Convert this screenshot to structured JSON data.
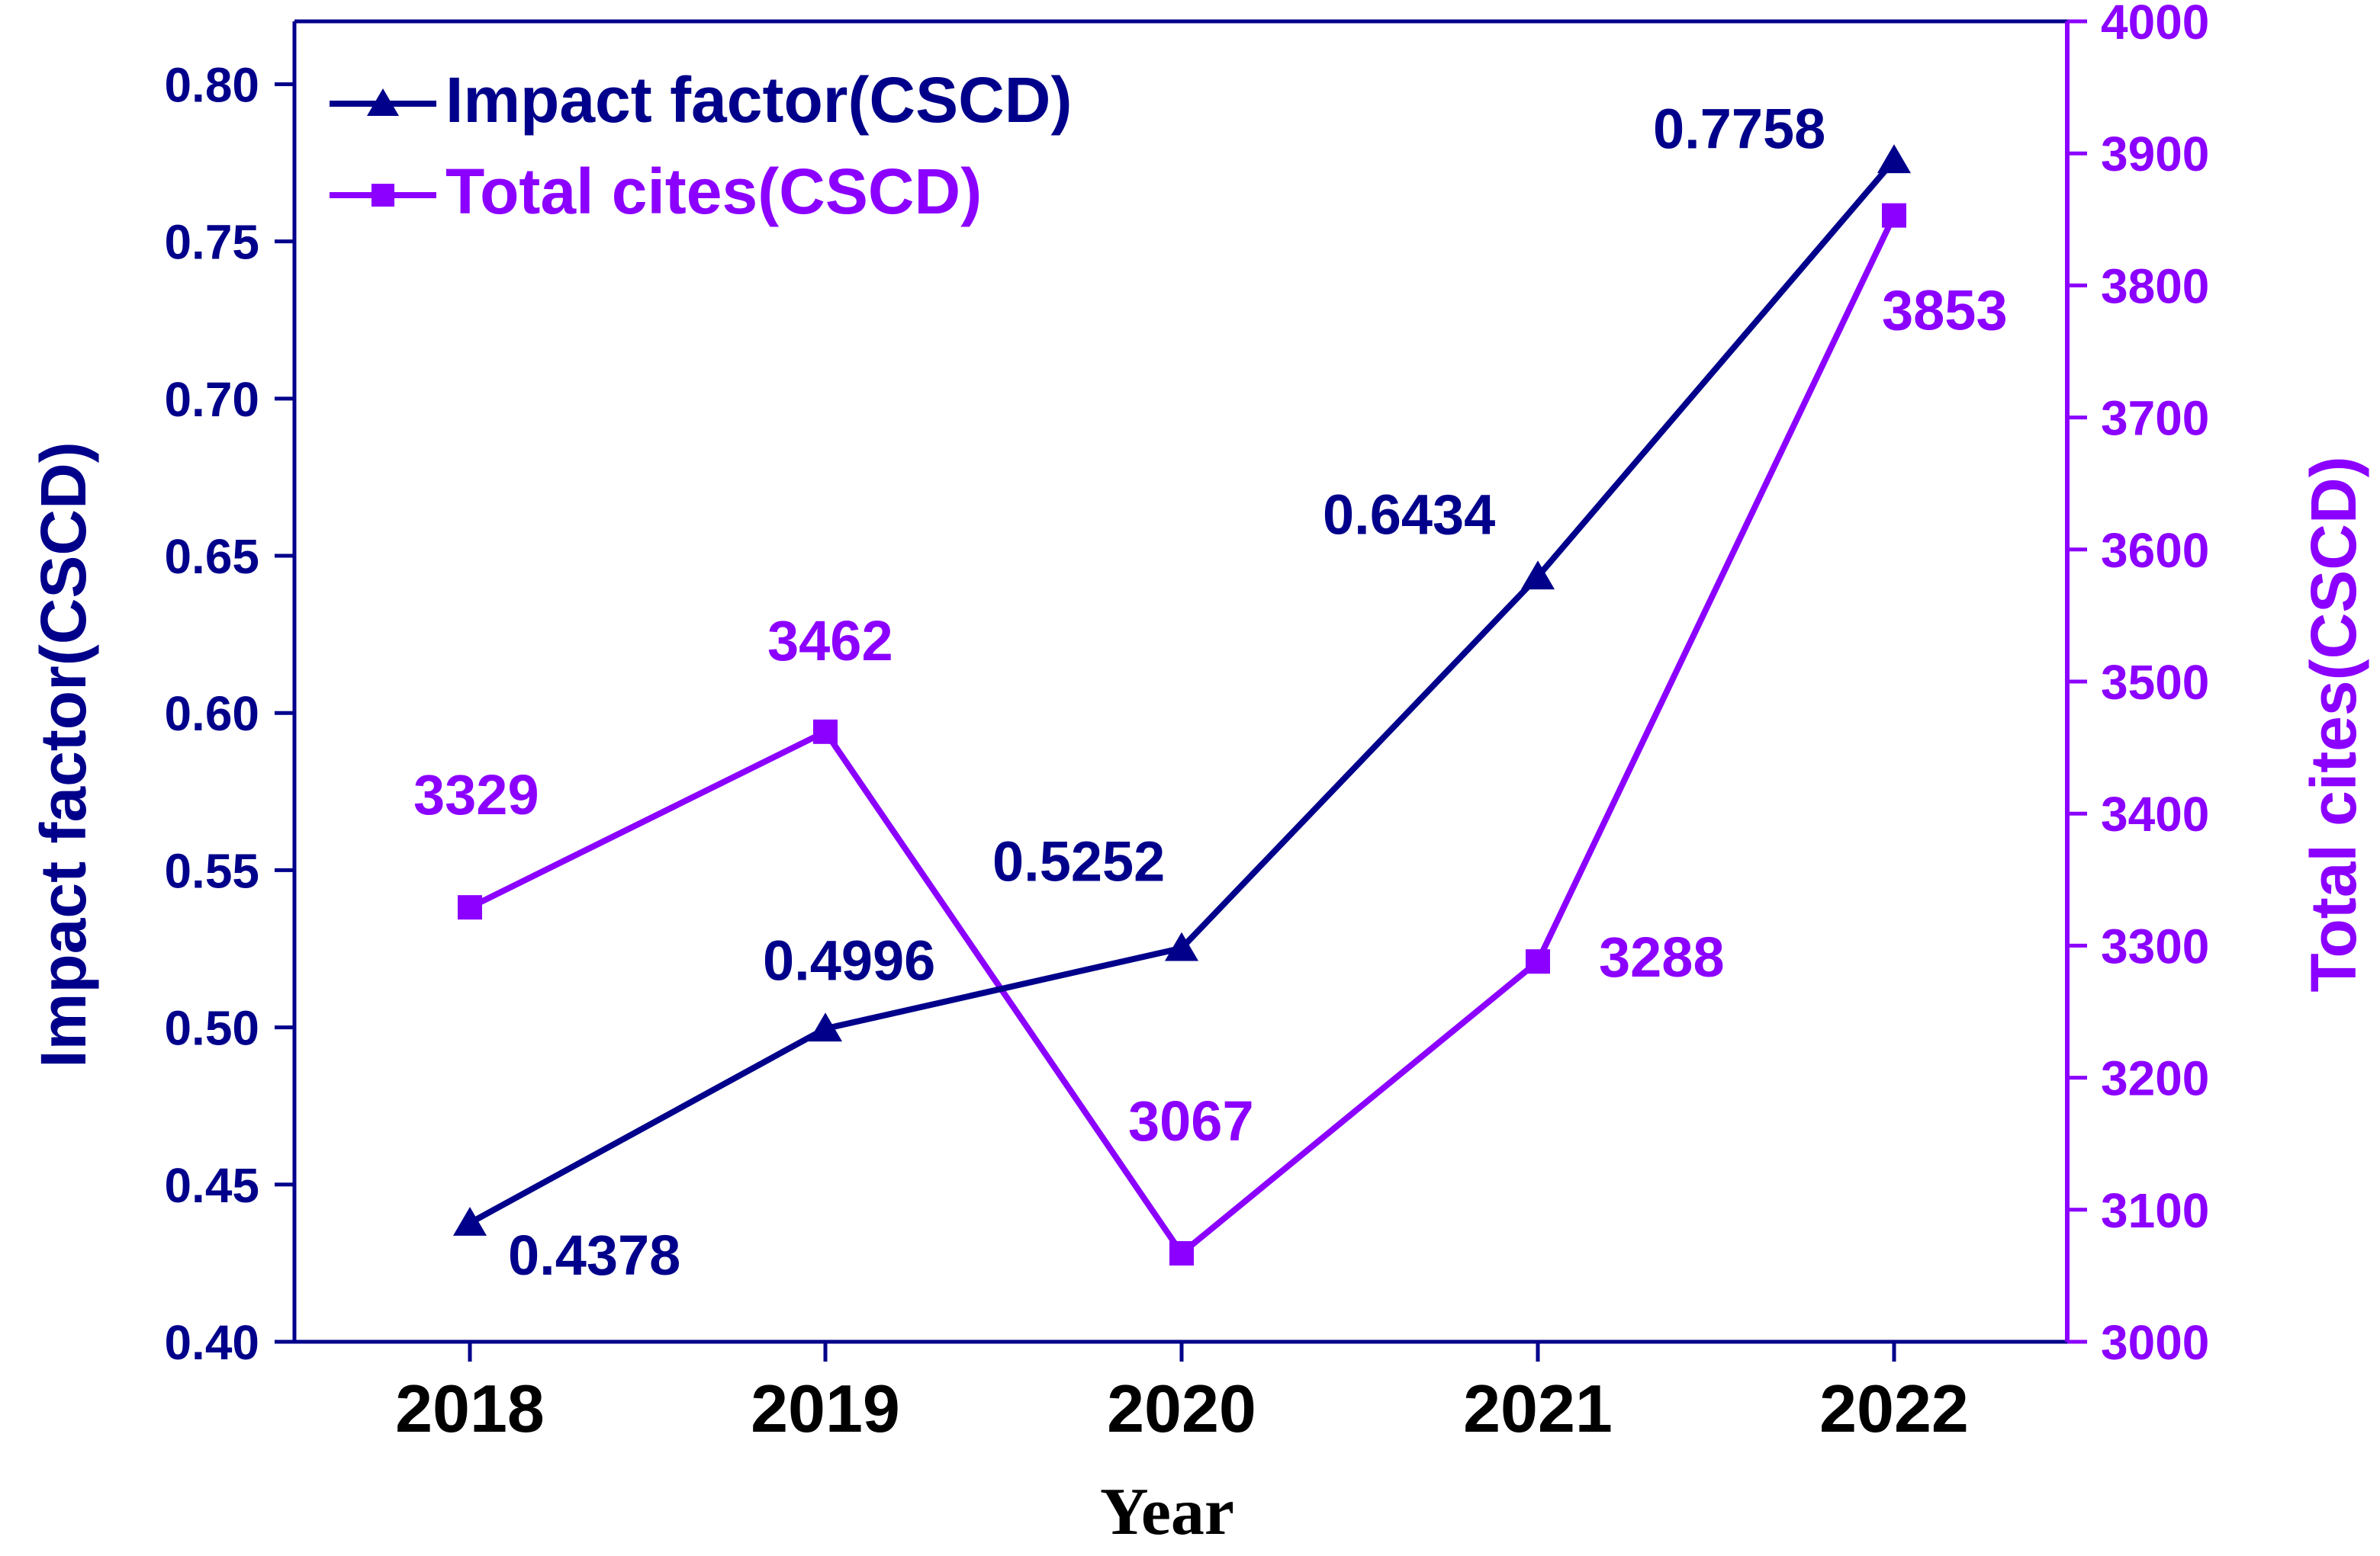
{
  "chart_data": {
    "type": "line",
    "categories": [
      "2018",
      "2019",
      "2020",
      "2021",
      "2022"
    ],
    "xlabel": "Year",
    "series": [
      {
        "name": "Impact factor(CSCD)",
        "axis": "left",
        "marker": "triangle",
        "color": "#00008B",
        "values": [
          0.4378,
          0.4996,
          0.5252,
          0.6434,
          0.7758
        ],
        "labels": [
          "0.4378",
          "0.4996",
          "0.5252",
          "0.6434",
          "0.7758"
        ]
      },
      {
        "name": "Total cites(CSCD)",
        "axis": "right",
        "marker": "square",
        "color": "#8B00FF",
        "values": [
          3329,
          3462,
          3067,
          3288,
          3853
        ],
        "labels": [
          "3329",
          "3462",
          "3067",
          "3288",
          "3853"
        ]
      }
    ],
    "y_left": {
      "label": "Impact factor(CSCD)",
      "ylim": [
        0.4,
        0.82
      ],
      "ticks": [
        "0.40",
        "0.45",
        "0.50",
        "0.55",
        "0.60",
        "0.65",
        "0.70",
        "0.75",
        "0.80"
      ]
    },
    "y_right": {
      "label": "Total cites(CSCD)",
      "ylim": [
        3000,
        4000
      ],
      "ticks": [
        "3000",
        "3100",
        "3200",
        "3300",
        "3400",
        "3500",
        "3600",
        "3700",
        "3800",
        "3900",
        "4000"
      ]
    },
    "grid": false,
    "legend_position": "top-left"
  }
}
